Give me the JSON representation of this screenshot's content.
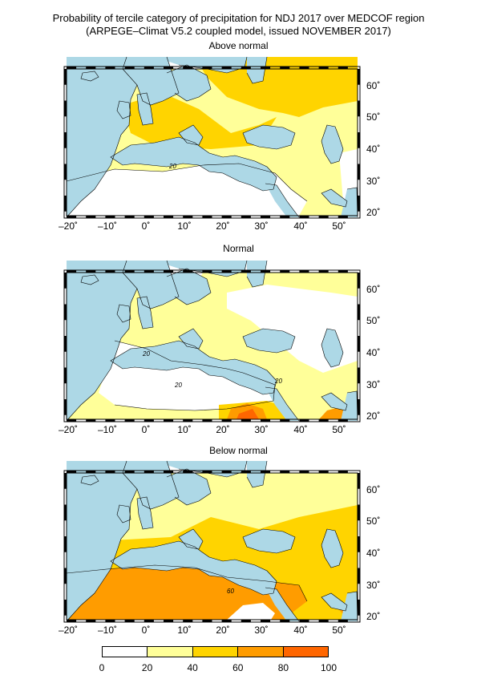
{
  "header": {
    "title_line1": "Probability of tercile category of precipitation for NDJ 2017 over MEDCOF region",
    "title_line2": "(ARPEGE–Climat V5.2 coupled model, issued NOVEMBER 2017)"
  },
  "axes": {
    "x_ticks": [
      "–20˚",
      "–10˚",
      "0˚",
      "10˚",
      "20˚",
      "30˚",
      "40˚",
      "50˚"
    ],
    "y_ticks": [
      "60˚",
      "50˚",
      "40˚",
      "30˚",
      "20˚"
    ]
  },
  "panels": [
    {
      "title": "Above normal",
      "contour_labels": [
        "20"
      ]
    },
    {
      "title": "Normal",
      "contour_labels": [
        "20",
        "20",
        "20"
      ]
    },
    {
      "title": "Below normal",
      "contour_labels": [
        "60"
      ]
    }
  ],
  "colorbar": {
    "ticks": [
      "0",
      "20",
      "40",
      "60",
      "80",
      "100"
    ],
    "colors": [
      "#ffffff",
      "#ffff99",
      "#ffd400",
      "#ff9c00",
      "#ff6600"
    ]
  },
  "colors": {
    "sea": "#add8e6",
    "bin_0_20": "#ffffff",
    "bin_20_40": "#ffff99",
    "bin_40_60": "#ffd400",
    "bin_60_80": "#ff9c00",
    "bin_80_100": "#ff6600"
  }
}
